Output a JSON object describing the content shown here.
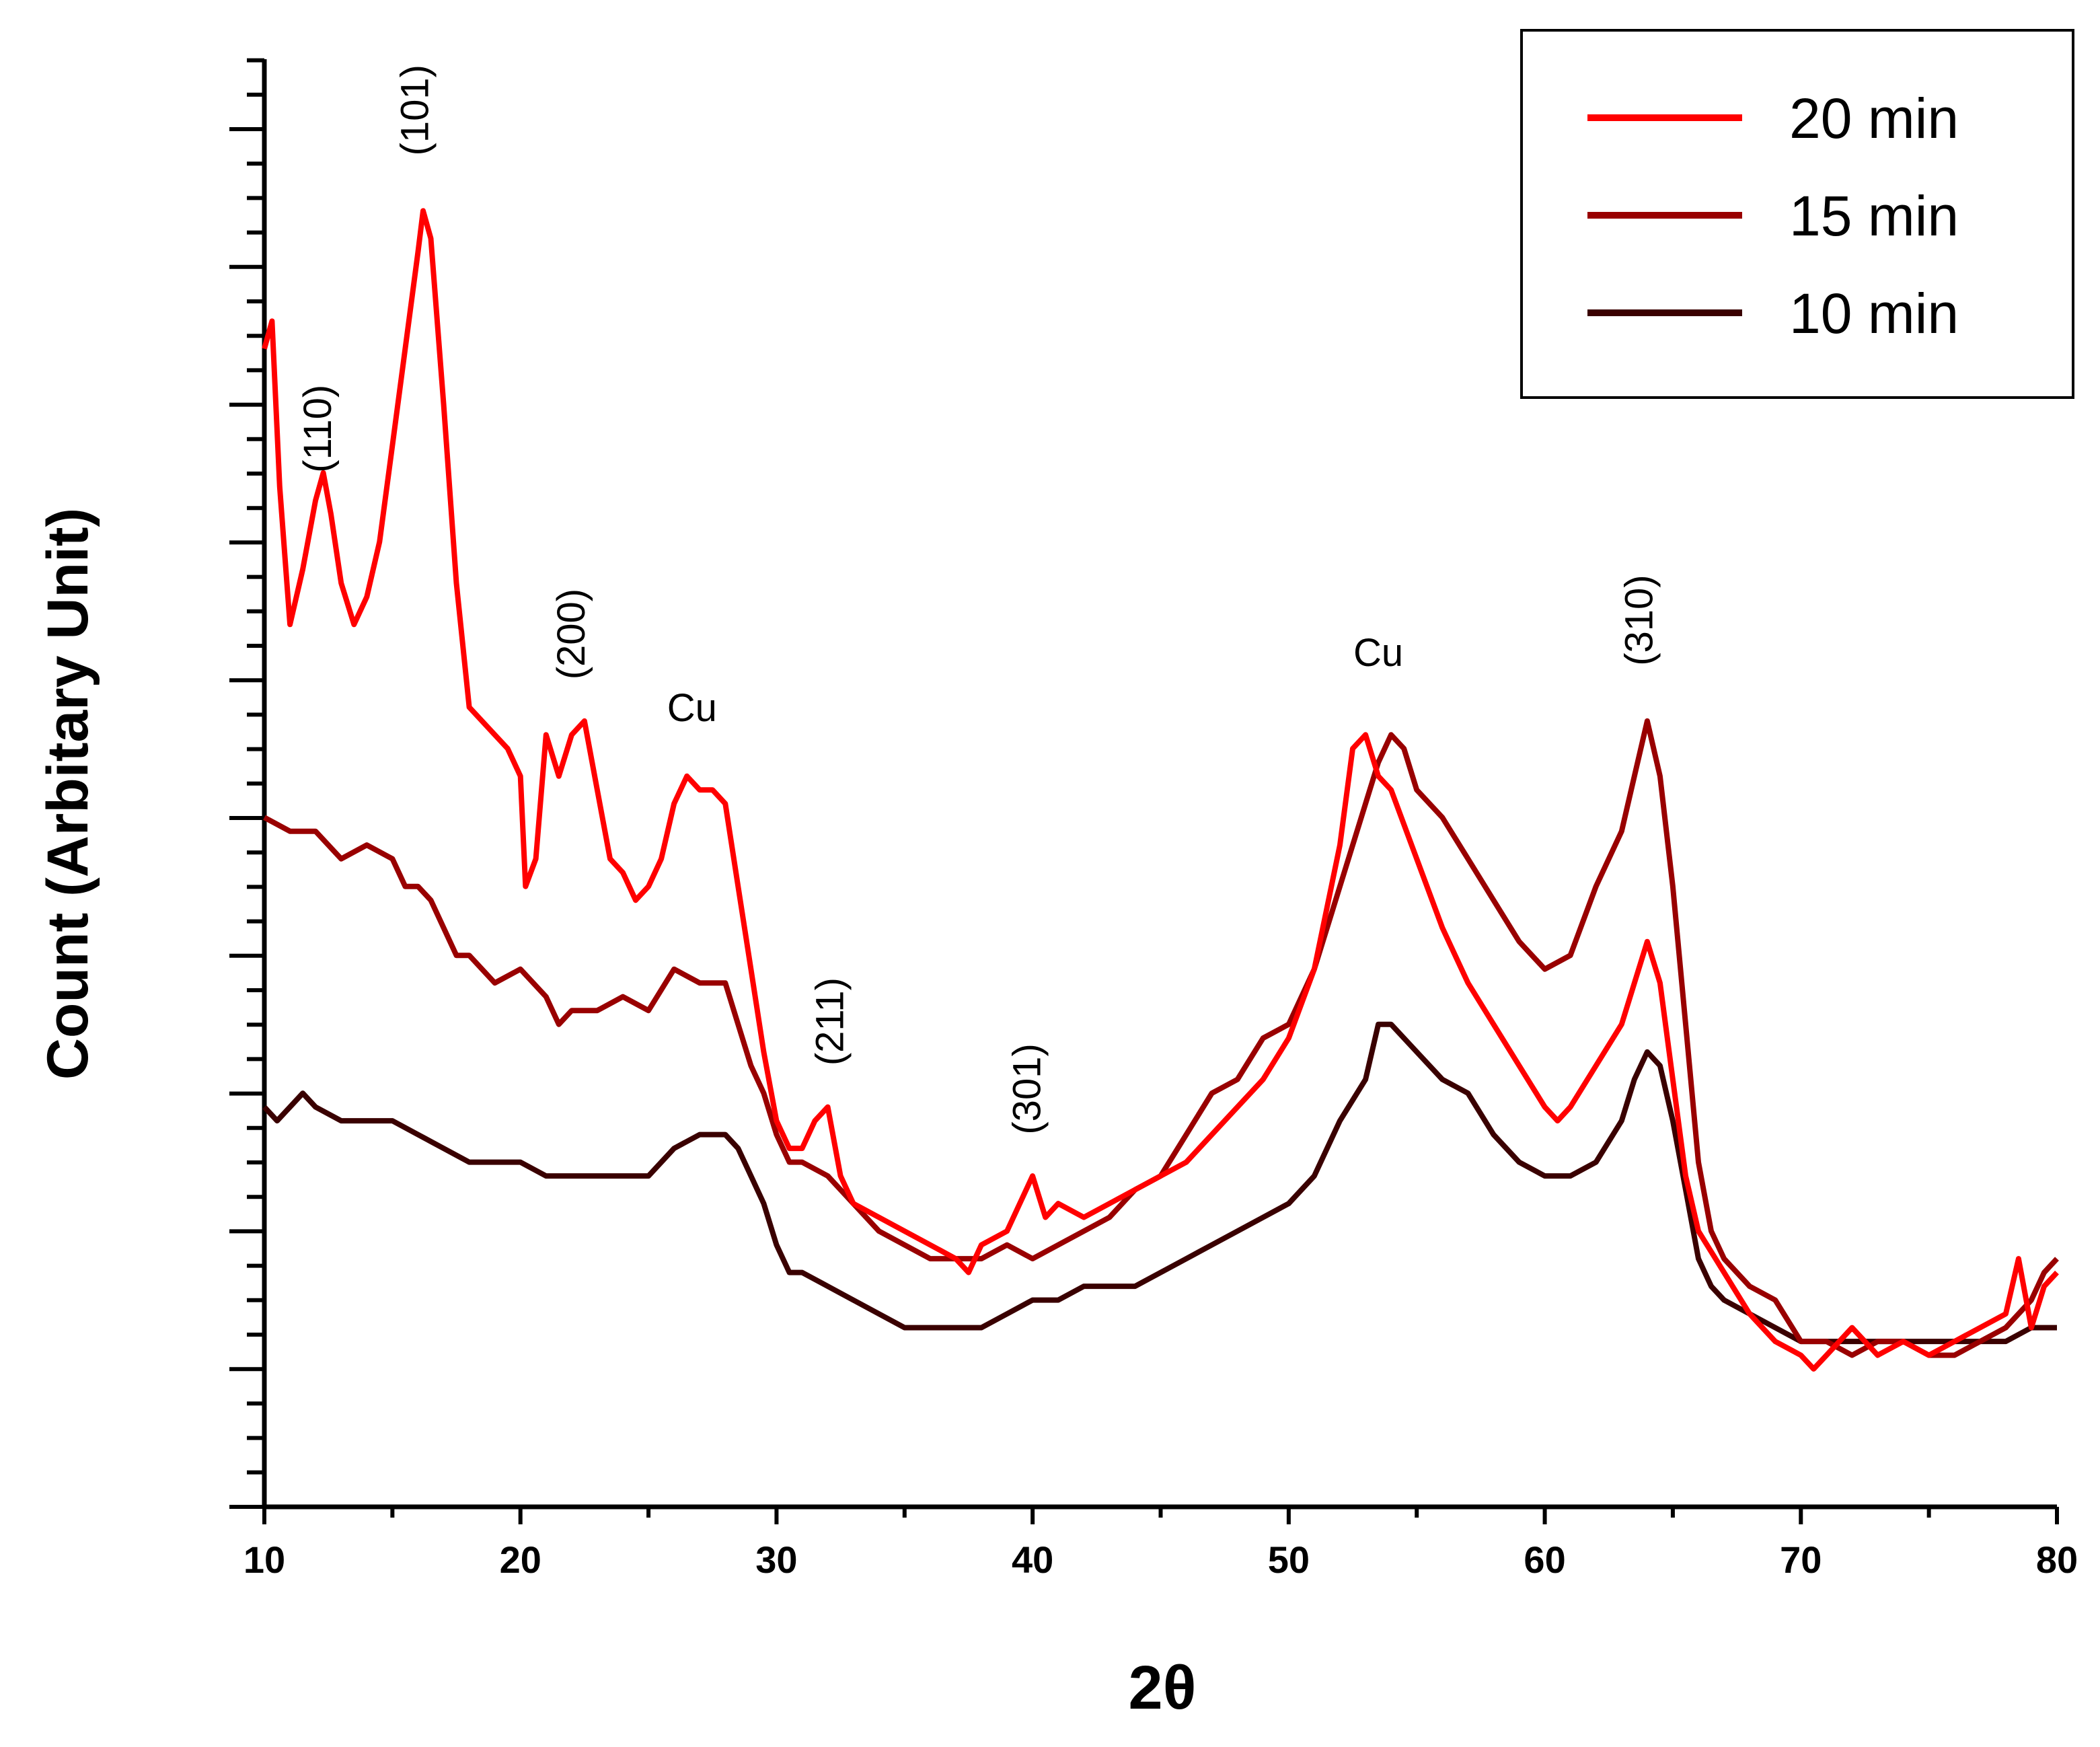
{
  "chart_data": {
    "type": "line",
    "title": "",
    "xlabel": "2θ",
    "ylabel": "Count (Arbitary Unit)",
    "xlim": [
      10,
      80
    ],
    "ylim": [
      0,
      105
    ],
    "x_ticks": [
      10,
      20,
      30,
      40,
      50,
      60,
      70,
      80
    ],
    "y_tick_labels": false,
    "legend_position": "top-right",
    "series": [
      {
        "name": "20 min",
        "color": "#ff0000",
        "points": [
          [
            10.0,
            84
          ],
          [
            10.3,
            86
          ],
          [
            10.6,
            74
          ],
          [
            11.0,
            64
          ],
          [
            11.5,
            68
          ],
          [
            12.0,
            73
          ],
          [
            12.3,
            75
          ],
          [
            12.6,
            72
          ],
          [
            13.0,
            67
          ],
          [
            13.5,
            64
          ],
          [
            14.0,
            66
          ],
          [
            14.5,
            70
          ],
          [
            15.0,
            77
          ],
          [
            15.5,
            84
          ],
          [
            16.0,
            91
          ],
          [
            16.2,
            94
          ],
          [
            16.5,
            92
          ],
          [
            17.0,
            80
          ],
          [
            17.5,
            67
          ],
          [
            18.0,
            58
          ],
          [
            18.5,
            57
          ],
          [
            19.0,
            56
          ],
          [
            19.5,
            55
          ],
          [
            20.0,
            53
          ],
          [
            20.2,
            45
          ],
          [
            20.6,
            47
          ],
          [
            21.0,
            56
          ],
          [
            21.5,
            53
          ],
          [
            22.0,
            56
          ],
          [
            22.5,
            57
          ],
          [
            23.0,
            52
          ],
          [
            23.5,
            47
          ],
          [
            24.0,
            46
          ],
          [
            24.5,
            44
          ],
          [
            25.0,
            45
          ],
          [
            25.5,
            47
          ],
          [
            26.0,
            51
          ],
          [
            26.5,
            53
          ],
          [
            27.0,
            52
          ],
          [
            27.5,
            52
          ],
          [
            28.0,
            51
          ],
          [
            28.5,
            45
          ],
          [
            29.0,
            39
          ],
          [
            29.5,
            33
          ],
          [
            30.0,
            28
          ],
          [
            30.5,
            26
          ],
          [
            31.0,
            26
          ],
          [
            31.5,
            28
          ],
          [
            32.0,
            29
          ],
          [
            32.5,
            24
          ],
          [
            33.0,
            22
          ],
          [
            34.0,
            21
          ],
          [
            35.0,
            20
          ],
          [
            36.0,
            19
          ],
          [
            37.0,
            18
          ],
          [
            37.5,
            17
          ],
          [
            38.0,
            19
          ],
          [
            39.0,
            20
          ],
          [
            40.0,
            24
          ],
          [
            40.5,
            21
          ],
          [
            41.0,
            22
          ],
          [
            42.0,
            21
          ],
          [
            43.0,
            22
          ],
          [
            44.0,
            23
          ],
          [
            45.0,
            24
          ],
          [
            46.0,
            25
          ],
          [
            47.0,
            27
          ],
          [
            48.0,
            29
          ],
          [
            49.0,
            31
          ],
          [
            50.0,
            34
          ],
          [
            51.0,
            39
          ],
          [
            52.0,
            48
          ],
          [
            52.5,
            55
          ],
          [
            53.0,
            56
          ],
          [
            53.5,
            53
          ],
          [
            54.0,
            52
          ],
          [
            55.0,
            47
          ],
          [
            56.0,
            42
          ],
          [
            57.0,
            38
          ],
          [
            58.0,
            35
          ],
          [
            59.0,
            32
          ],
          [
            60.0,
            29
          ],
          [
            60.5,
            28
          ],
          [
            61.0,
            29
          ],
          [
            62.0,
            32
          ],
          [
            63.0,
            35
          ],
          [
            64.0,
            41
          ],
          [
            64.5,
            38
          ],
          [
            65.0,
            31
          ],
          [
            65.5,
            24
          ],
          [
            66.0,
            20
          ],
          [
            67.0,
            17
          ],
          [
            68.0,
            14
          ],
          [
            69.0,
            12
          ],
          [
            70.0,
            11
          ],
          [
            70.5,
            10
          ],
          [
            71.0,
            11
          ],
          [
            72.0,
            13
          ],
          [
            73.0,
            11
          ],
          [
            74.0,
            12
          ],
          [
            75.0,
            11
          ],
          [
            76.0,
            12
          ],
          [
            77.0,
            13
          ],
          [
            78.0,
            14
          ],
          [
            78.5,
            18
          ],
          [
            79.0,
            13
          ],
          [
            79.5,
            16
          ],
          [
            80.0,
            17
          ]
        ]
      },
      {
        "name": "15 min",
        "color": "#990000",
        "points": [
          [
            10.0,
            50
          ],
          [
            11.0,
            49
          ],
          [
            12.0,
            49
          ],
          [
            13.0,
            47
          ],
          [
            14.0,
            48
          ],
          [
            15.0,
            47
          ],
          [
            15.5,
            45
          ],
          [
            16.0,
            45
          ],
          [
            16.5,
            44
          ],
          [
            17.0,
            42
          ],
          [
            17.5,
            40
          ],
          [
            18.0,
            40
          ],
          [
            19.0,
            38
          ],
          [
            20.0,
            39
          ],
          [
            21.0,
            37
          ],
          [
            21.5,
            35
          ],
          [
            22.0,
            36
          ],
          [
            23.0,
            36
          ],
          [
            24.0,
            37
          ],
          [
            25.0,
            36
          ],
          [
            26.0,
            39
          ],
          [
            27.0,
            38
          ],
          [
            28.0,
            38
          ],
          [
            28.5,
            35
          ],
          [
            29.0,
            32
          ],
          [
            29.5,
            30
          ],
          [
            30.0,
            27
          ],
          [
            30.5,
            25
          ],
          [
            31.0,
            25
          ],
          [
            32.0,
            24
          ],
          [
            33.0,
            22
          ],
          [
            34.0,
            20
          ],
          [
            35.0,
            19
          ],
          [
            36.0,
            18
          ],
          [
            37.0,
            18
          ],
          [
            38.0,
            18
          ],
          [
            39.0,
            19
          ],
          [
            40.0,
            18
          ],
          [
            41.0,
            19
          ],
          [
            42.0,
            20
          ],
          [
            43.0,
            21
          ],
          [
            44.0,
            23
          ],
          [
            45.0,
            24
          ],
          [
            46.0,
            27
          ],
          [
            47.0,
            30
          ],
          [
            48.0,
            31
          ],
          [
            49.0,
            34
          ],
          [
            50.0,
            35
          ],
          [
            51.0,
            39
          ],
          [
            52.0,
            45
          ],
          [
            53.0,
            51
          ],
          [
            53.5,
            54
          ],
          [
            54.0,
            56
          ],
          [
            54.5,
            55
          ],
          [
            55.0,
            52
          ],
          [
            56.0,
            50
          ],
          [
            57.0,
            47
          ],
          [
            58.0,
            44
          ],
          [
            59.0,
            41
          ],
          [
            60.0,
            39
          ],
          [
            61.0,
            40
          ],
          [
            62.0,
            45
          ],
          [
            63.0,
            49
          ],
          [
            63.5,
            53
          ],
          [
            64.0,
            57
          ],
          [
            64.5,
            53
          ],
          [
            65.0,
            45
          ],
          [
            65.5,
            35
          ],
          [
            66.0,
            25
          ],
          [
            66.5,
            20
          ],
          [
            67.0,
            18
          ],
          [
            68.0,
            16
          ],
          [
            69.0,
            15
          ],
          [
            70.0,
            12
          ],
          [
            71.0,
            12
          ],
          [
            72.0,
            11
          ],
          [
            73.0,
            12
          ],
          [
            74.0,
            12
          ],
          [
            75.0,
            11
          ],
          [
            76.0,
            11
          ],
          [
            77.0,
            12
          ],
          [
            78.0,
            13
          ],
          [
            79.0,
            15
          ],
          [
            79.5,
            17
          ],
          [
            80.0,
            18
          ]
        ]
      },
      {
        "name": "10 min",
        "color": "#3a0000",
        "points": [
          [
            10.0,
            29
          ],
          [
            10.5,
            28
          ],
          [
            11.0,
            29
          ],
          [
            11.5,
            30
          ],
          [
            12.0,
            29
          ],
          [
            13.0,
            28
          ],
          [
            14.0,
            28
          ],
          [
            15.0,
            28
          ],
          [
            16.0,
            27
          ],
          [
            17.0,
            26
          ],
          [
            18.0,
            25
          ],
          [
            19.0,
            25
          ],
          [
            20.0,
            25
          ],
          [
            21.0,
            24
          ],
          [
            22.0,
            24
          ],
          [
            23.0,
            24
          ],
          [
            24.0,
            24
          ],
          [
            25.0,
            24
          ],
          [
            26.0,
            26
          ],
          [
            27.0,
            27
          ],
          [
            28.0,
            27
          ],
          [
            28.5,
            26
          ],
          [
            29.0,
            24
          ],
          [
            29.5,
            22
          ],
          [
            30.0,
            19
          ],
          [
            30.5,
            17
          ],
          [
            31.0,
            17
          ],
          [
            32.0,
            16
          ],
          [
            33.0,
            15
          ],
          [
            34.0,
            14
          ],
          [
            35.0,
            13
          ],
          [
            36.0,
            13
          ],
          [
            37.0,
            13
          ],
          [
            37.5,
            13
          ],
          [
            38.0,
            13
          ],
          [
            39.0,
            14
          ],
          [
            40.0,
            15
          ],
          [
            41.0,
            15
          ],
          [
            42.0,
            16
          ],
          [
            43.0,
            16
          ],
          [
            44.0,
            16
          ],
          [
            45.0,
            17
          ],
          [
            46.0,
            18
          ],
          [
            47.0,
            19
          ],
          [
            48.0,
            20
          ],
          [
            49.0,
            21
          ],
          [
            50.0,
            22
          ],
          [
            51.0,
            24
          ],
          [
            52.0,
            28
          ],
          [
            53.0,
            31
          ],
          [
            53.5,
            35
          ],
          [
            54.0,
            35
          ],
          [
            55.0,
            33
          ],
          [
            56.0,
            31
          ],
          [
            57.0,
            30
          ],
          [
            58.0,
            27
          ],
          [
            59.0,
            25
          ],
          [
            60.0,
            24
          ],
          [
            61.0,
            24
          ],
          [
            62.0,
            25
          ],
          [
            63.0,
            28
          ],
          [
            63.5,
            31
          ],
          [
            64.0,
            33
          ],
          [
            64.5,
            32
          ],
          [
            65.0,
            28
          ],
          [
            65.5,
            23
          ],
          [
            66.0,
            18
          ],
          [
            66.5,
            16
          ],
          [
            67.0,
            15
          ],
          [
            68.0,
            14
          ],
          [
            69.0,
            13
          ],
          [
            70.0,
            12
          ],
          [
            71.0,
            12
          ],
          [
            72.0,
            12
          ],
          [
            73.0,
            12
          ],
          [
            74.0,
            12
          ],
          [
            75.0,
            12
          ],
          [
            76.0,
            12
          ],
          [
            77.0,
            12
          ],
          [
            78.0,
            12
          ],
          [
            79.0,
            13
          ],
          [
            80.0,
            13
          ]
        ]
      }
    ],
    "annotations": [
      {
        "text": "(110)",
        "x": 12.6,
        "y": 75,
        "rotated": true
      },
      {
        "text": "(101)",
        "x": 16.4,
        "y": 98,
        "rotated": true
      },
      {
        "text": "(200)",
        "x": 22.5,
        "y": 60,
        "rotated": true
      },
      {
        "text": "Cu",
        "x": 26.7,
        "y": 57,
        "rotated": false
      },
      {
        "text": "(211)",
        "x": 32.6,
        "y": 32,
        "rotated": true
      },
      {
        "text": "(301)",
        "x": 40.3,
        "y": 27,
        "rotated": true
      },
      {
        "text": "Cu",
        "x": 53.5,
        "y": 61,
        "rotated": false
      },
      {
        "text": "(310)",
        "x": 64.2,
        "y": 61,
        "rotated": true
      }
    ]
  }
}
